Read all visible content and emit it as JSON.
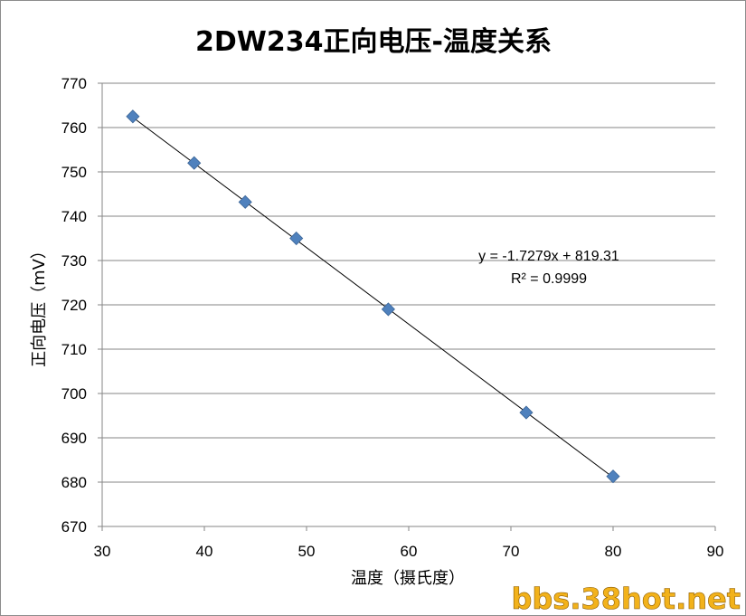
{
  "chart_data": {
    "type": "scatter",
    "title": "2DW234正向电压-温度关系",
    "xlabel": "温度（摄氏度）",
    "ylabel": "正向电压（mV）",
    "xlim": [
      30,
      90
    ],
    "ylim": [
      670,
      770
    ],
    "x_ticks": [
      "30",
      "40",
      "50",
      "60",
      "70",
      "80",
      "90"
    ],
    "y_ticks": [
      "670",
      "680",
      "690",
      "700",
      "710",
      "720",
      "730",
      "740",
      "750",
      "760",
      "770"
    ],
    "grid": "horizontal",
    "series": [
      {
        "marker": "diamond",
        "color": "#4f81bd",
        "x": [
          33,
          39,
          44,
          49,
          58,
          71.5,
          80
        ],
        "y": [
          762.5,
          752,
          743.2,
          735,
          719,
          695.7,
          681.3
        ]
      }
    ],
    "trendline": {
      "type": "linear",
      "slope": -1.7279,
      "intercept": 819.31,
      "equation": "y = -1.7279x + 819.31",
      "r2": "R² = 0.9999"
    }
  },
  "watermark": "bbs.38hot.net"
}
